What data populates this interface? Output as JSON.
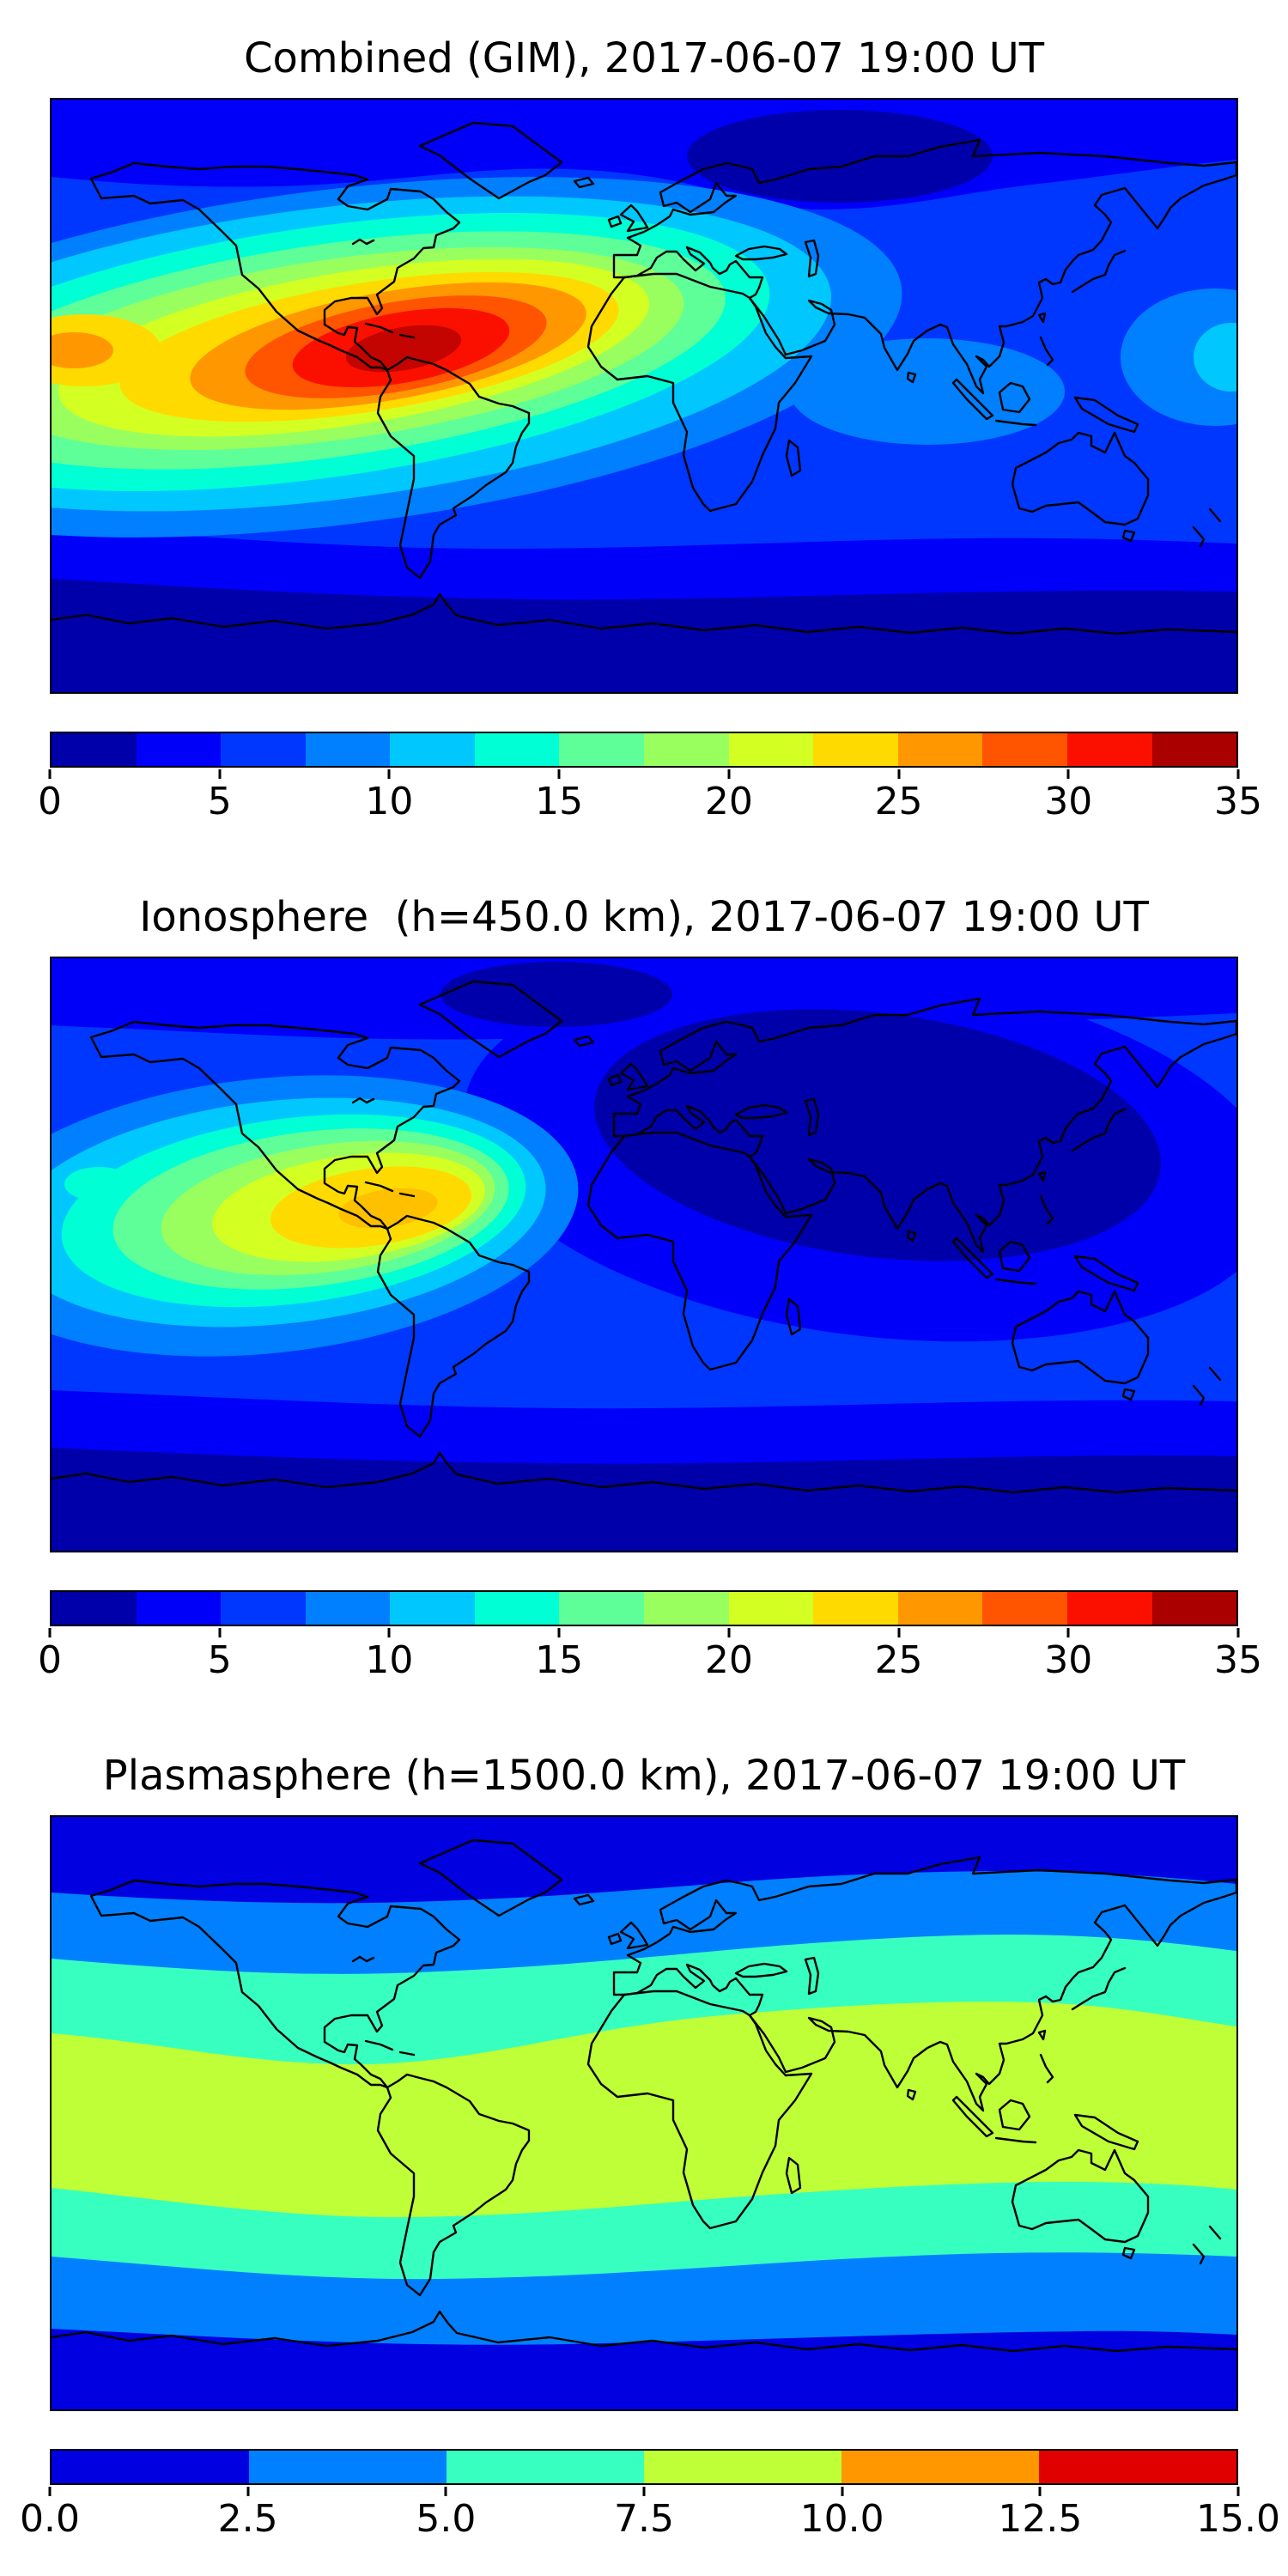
{
  "figure": {
    "background_color": "#ffffff",
    "panels": [
      {
        "id": "combined",
        "title": "Combined (GIM), 2017-06-07 19:00 UT",
        "colorbar": {
          "min": 0,
          "max": 35,
          "ticks": [
            "0",
            "5",
            "10",
            "15",
            "20",
            "25",
            "30",
            "35"
          ],
          "segments": [
            "#0000AA",
            "#0000FA",
            "#0037FF",
            "#0080FF",
            "#00C8FF",
            "#00FFD4",
            "#5EFF99",
            "#99FF5E",
            "#D4FF23",
            "#FFDA00",
            "#FF9700",
            "#FF5400",
            "#FB1000",
            "#AA0000"
          ]
        }
      },
      {
        "id": "ionosphere",
        "title": "Ionosphere  (h=450.0 km), 2017-06-07 19:00 UT",
        "colorbar": {
          "min": 0,
          "max": 35,
          "ticks": [
            "0",
            "5",
            "10",
            "15",
            "20",
            "25",
            "30",
            "35"
          ],
          "segments": [
            "#0000AA",
            "#0000FA",
            "#0037FF",
            "#0080FF",
            "#00C8FF",
            "#00FFD4",
            "#5EFF99",
            "#99FF5E",
            "#D4FF23",
            "#FFDA00",
            "#FF9700",
            "#FF5400",
            "#FB1000",
            "#AA0000"
          ]
        }
      },
      {
        "id": "plasmasphere",
        "title": "Plasmasphere (h=1500.0 km), 2017-06-07 19:00 UT",
        "colorbar": {
          "min": 0,
          "max": 15,
          "ticks": [
            "0.0",
            "2.5",
            "5.0",
            "7.5",
            "10.0",
            "12.5",
            "15.0"
          ],
          "segments": [
            "#0000E0",
            "#0080FF",
            "#37FFBF",
            "#BFFF37",
            "#FF9700",
            "#E00000"
          ]
        }
      }
    ]
  },
  "chart_data": [
    {
      "type": "heatmap",
      "subtype": "filled-contour world map",
      "title": "Combined (GIM), 2017-06-07 19:00 UT",
      "projection": "equirectangular",
      "lon_range": [
        -180,
        180
      ],
      "lat_range": [
        -90,
        90
      ],
      "value_range": [
        0,
        35
      ],
      "colorbar_ticks": [
        0,
        5,
        10,
        15,
        20,
        25,
        30,
        35
      ],
      "n_contour_levels": 14,
      "colormap": "jet",
      "legend_position": "horizontal colorbar below map",
      "features": [
        {
          "name": "primary maximum",
          "value_approx": 33,
          "location": "about 10-15N, 70-75W over the Caribbean / northern South America"
        },
        {
          "name": "enhanced crest band",
          "value_approx": "15-25",
          "location": "extends west across the equatorial Pacific to the left map edge and northeast over the tropical Atlantic"
        },
        {
          "name": "secondary crest at map edge",
          "value_approx": "22-27",
          "location": "far western Pacific near the date line, about 5-15N"
        },
        {
          "name": "southern minimum band",
          "value_approx": "<5",
          "location": "high southern latitudes poleward of about 55S"
        },
        {
          "name": "northern local minimum",
          "value_approx": "<5",
          "location": "about 60-75N over northern Siberia / Kara Sea"
        },
        {
          "name": "background level",
          "value_approx": "7-12",
          "location": "mid-latitude oceans, Eurasia and Africa"
        }
      ]
    },
    {
      "type": "heatmap",
      "subtype": "filled-contour world map",
      "title": "Ionosphere  (h=450.0 km), 2017-06-07 19:00 UT",
      "projection": "equirectangular",
      "lon_range": [
        -180,
        180
      ],
      "lat_range": [
        -90,
        90
      ],
      "value_range": [
        0,
        35
      ],
      "colorbar_ticks": [
        0,
        5,
        10,
        15,
        20,
        25,
        30,
        35
      ],
      "n_contour_levels": 14,
      "colormap": "jet",
      "legend_position": "horizontal colorbar below map",
      "features": [
        {
          "name": "primary maximum",
          "value_approx": 22,
          "location": "about 10N, 78W over Colombia / Caribbean"
        },
        {
          "name": "enhanced band",
          "value_approx": "12-18",
          "location": "extends west across the equatorial Pacific to the left map edge"
        },
        {
          "name": "deep minimum",
          "value_approx": "<2.5",
          "location": "broad region over central and east Asia, roughly 10-55N"
        },
        {
          "name": "southern minimum band",
          "value_approx": "<5",
          "location": "high southern latitudes"
        },
        {
          "name": "background level",
          "value_approx": "5-10",
          "location": "elsewhere over the oceans"
        }
      ]
    },
    {
      "type": "heatmap",
      "subtype": "filled-contour world map",
      "title": "Plasmasphere (h=1500.0 km), 2017-06-07 19:00 UT",
      "projection": "equirectangular",
      "lon_range": [
        -180,
        180
      ],
      "lat_range": [
        -90,
        90
      ],
      "value_range": [
        0,
        15
      ],
      "colorbar_ticks": [
        0.0,
        2.5,
        5.0,
        7.5,
        10.0,
        12.5,
        15.0
      ],
      "n_contour_levels": 6,
      "colormap": "jet",
      "legend_position": "horizontal colorbar below map",
      "features": [
        {
          "name": "equatorial maximum band",
          "value_approx": "7.5-10",
          "location": "zonal band roughly 25S-25N following the geomagnetic equator (shifted south over the Americas, north over Asia)"
        },
        {
          "name": "adjacent bands",
          "value_approx": "5-7.5",
          "location": "turquoise zonal bands on either side of the equatorial band"
        },
        {
          "name": "sub-polar bands",
          "value_approx": "2.5-5",
          "location": "roughly 45-65 latitude in both hemispheres"
        },
        {
          "name": "polar minimum",
          "value_approx": "<2.5",
          "location": "poleward of about 65 in both hemispheres"
        }
      ]
    }
  ]
}
